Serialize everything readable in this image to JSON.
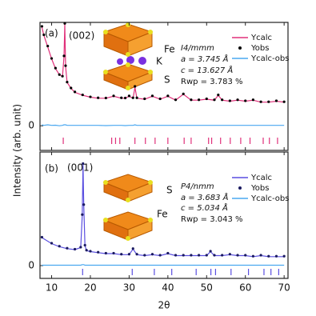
{
  "chart_data": [
    {
      "type": "line",
      "panel_label": "(a)",
      "peak_label": "(002)",
      "annotations": [
        "I4/mmm",
        "a = 3.745 Å",
        "c = 13.627 Å",
        "Rwp = 3.783 %"
      ],
      "structure_labels": [
        "Fe",
        "K",
        "S"
      ],
      "ylabel": "Intensity (arb. unit)",
      "xlim": [
        7,
        71
      ],
      "ylim": [
        -1.25,
        5.25
      ],
      "yticks": [
        0
      ],
      "xticks": [
        10,
        20,
        30,
        40,
        50,
        60,
        70
      ],
      "x": [
        7.5,
        8,
        9,
        10,
        11,
        12,
        12.8,
        13.2,
        13.4,
        13.6,
        14,
        15,
        16,
        18,
        20,
        22,
        24,
        26,
        28,
        29,
        30,
        31,
        31.5,
        32,
        34,
        36,
        38,
        40,
        42,
        44,
        46,
        48,
        50,
        52,
        53,
        54,
        56,
        58,
        60,
        62,
        64,
        66,
        68,
        70
      ],
      "series": [
        {
          "name": "Ycalc",
          "color": "#e0307a",
          "style": "line",
          "values": [
            5.0,
            4.6,
            4.0,
            3.4,
            2.9,
            2.6,
            2.5,
            3.5,
            5.15,
            3.0,
            2.2,
            1.9,
            1.7,
            1.55,
            1.45,
            1.4,
            1.4,
            1.5,
            1.4,
            1.4,
            1.5,
            1.4,
            1.95,
            1.4,
            1.35,
            1.5,
            1.35,
            1.5,
            1.3,
            1.6,
            1.3,
            1.3,
            1.35,
            1.3,
            1.55,
            1.3,
            1.25,
            1.3,
            1.25,
            1.3,
            1.2,
            1.2,
            1.25,
            1.2
          ]
        },
        {
          "name": "Yobs",
          "color": "#000000",
          "style": "dots",
          "values": [
            5.05,
            4.62,
            4.05,
            3.42,
            2.93,
            2.6,
            2.52,
            3.55,
            5.2,
            3.05,
            2.22,
            1.92,
            1.72,
            1.57,
            1.47,
            1.42,
            1.41,
            1.52,
            1.42,
            1.41,
            1.52,
            1.42,
            2.0,
            1.42,
            1.37,
            1.52,
            1.37,
            1.52,
            1.32,
            1.62,
            1.32,
            1.32,
            1.37,
            1.32,
            1.57,
            1.32,
            1.27,
            1.32,
            1.27,
            1.32,
            1.22,
            1.22,
            1.27,
            1.22
          ]
        },
        {
          "name": "Ycalc-obs",
          "color": "#4aa8f0",
          "style": "line",
          "values": [
            0.05,
            0.02,
            0.05,
            0.02,
            0.03,
            0.0,
            0.02,
            0.05,
            0.05,
            0.05,
            0.02,
            0.02,
            0.02,
            0.02,
            0.02,
            0.02,
            0.01,
            0.02,
            0.02,
            0.01,
            0.02,
            0.02,
            0.05,
            0.02,
            0.02,
            0.02,
            0.02,
            0.02,
            0.02,
            0.02,
            0.02,
            0.02,
            0.02,
            0.02,
            0.02,
            0.02,
            0.02,
            0.02,
            0.02,
            0.02,
            0.02,
            0.02,
            0.02,
            0.02
          ]
        }
      ],
      "reflections": [
        13.0,
        25.5,
        26.5,
        27.6,
        31.5,
        34.2,
        36.7,
        40.0,
        44.2,
        46.0,
        50.5,
        51.3,
        53.6,
        56.1,
        58.8,
        61.2,
        64.6,
        66.2,
        68.3
      ],
      "reflection_color": "#e0307a"
    },
    {
      "type": "line",
      "panel_label": "(b)",
      "peak_label": "(001)",
      "annotations": [
        "P4/nmm",
        "a = 3.683 Å",
        "c = 5.034 Å",
        "Rwp = 3.043 %"
      ],
      "structure_labels": [
        "S",
        "Fe"
      ],
      "xlabel": "2θ",
      "xlim": [
        7,
        71
      ],
      "ylim": [
        -0.64,
        5.68
      ],
      "yticks": [
        0
      ],
      "xticks": [
        10,
        20,
        30,
        40,
        50,
        60,
        70
      ],
      "x": [
        7.5,
        10,
        12,
        14,
        16,
        17.5,
        17.9,
        18.1,
        18.3,
        18.6,
        19,
        20,
        22,
        24,
        26,
        28,
        30,
        31,
        32,
        34,
        36,
        38,
        40,
        42,
        44,
        46,
        48,
        50,
        51,
        52,
        54,
        56,
        58,
        60,
        62,
        64,
        66,
        68,
        70
      ],
      "series": [
        {
          "name": "Ycalc",
          "color": "#5a4fe0",
          "style": "line",
          "values": [
            1.4,
            1.1,
            0.95,
            0.85,
            0.8,
            0.9,
            2.5,
            5.05,
            3.0,
            1.0,
            0.75,
            0.7,
            0.65,
            0.6,
            0.6,
            0.55,
            0.55,
            0.83,
            0.55,
            0.5,
            0.55,
            0.5,
            0.6,
            0.5,
            0.5,
            0.5,
            0.5,
            0.5,
            0.7,
            0.5,
            0.5,
            0.55,
            0.5,
            0.5,
            0.45,
            0.5,
            0.45,
            0.45,
            0.45
          ]
        },
        {
          "name": "Yobs",
          "color": "#1a1a60",
          "style": "dots",
          "values": [
            1.42,
            1.12,
            0.97,
            0.87,
            0.82,
            0.92,
            2.55,
            5.1,
            3.05,
            1.02,
            0.77,
            0.72,
            0.67,
            0.62,
            0.62,
            0.57,
            0.57,
            0.85,
            0.57,
            0.52,
            0.57,
            0.52,
            0.62,
            0.52,
            0.52,
            0.52,
            0.52,
            0.52,
            0.72,
            0.52,
            0.52,
            0.57,
            0.52,
            0.52,
            0.47,
            0.52,
            0.47,
            0.47,
            0.47
          ]
        },
        {
          "name": "Ycalc-obs",
          "color": "#4aa8f0",
          "style": "line",
          "values": [
            0.02,
            0.02,
            0.02,
            0.02,
            0.02,
            0.02,
            0.05,
            0.05,
            0.05,
            0.02,
            0.02,
            0.02,
            0.02,
            0.02,
            0.02,
            0.02,
            0.02,
            0.02,
            0.02,
            0.02,
            0.02,
            0.02,
            0.02,
            0.02,
            0.02,
            0.02,
            0.02,
            0.02,
            0.02,
            0.02,
            0.02,
            0.02,
            0.02,
            0.02,
            0.02,
            0.02,
            0.02,
            0.02,
            0.02
          ]
        }
      ],
      "reflections": [
        18.0,
        30.8,
        36.5,
        41.0,
        47.3,
        51.1,
        52.3,
        56.3,
        60.8,
        64.8,
        66.6,
        68.6
      ],
      "reflection_color": "#5a4fe0"
    }
  ]
}
